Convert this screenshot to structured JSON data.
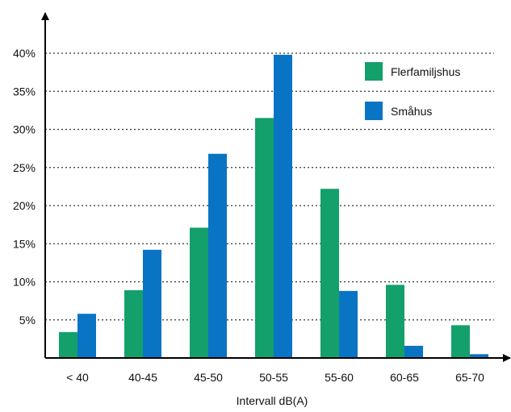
{
  "chart_data": {
    "type": "bar",
    "categories": [
      "< 40",
      "40-45",
      "45-50",
      "50-55",
      "55-60",
      "60-65",
      "65-70"
    ],
    "series": [
      {
        "name": "Flerfamiljshus",
        "color": "#13a06a",
        "values": [
          3.4,
          8.9,
          17.1,
          31.5,
          22.2,
          9.6,
          4.3
        ]
      },
      {
        "name": "Småhus",
        "color": "#0a74c4",
        "values": [
          5.8,
          14.2,
          26.8,
          39.8,
          8.8,
          1.6,
          0.5
        ]
      }
    ],
    "xlabel": "Intervall dB(A)",
    "ylabel": "",
    "ylim": [
      0,
      40
    ],
    "yticks": [
      {
        "value": 5,
        "label": "5%"
      },
      {
        "value": 10,
        "label": "10%"
      },
      {
        "value": 15,
        "label": "15%"
      },
      {
        "value": 20,
        "label": "20%"
      },
      {
        "value": 25,
        "label": "25%"
      },
      {
        "value": 30,
        "label": "30%"
      },
      {
        "value": 35,
        "label": "35%"
      },
      {
        "value": 40,
        "label": "40%"
      }
    ],
    "grid": true,
    "grid_style": "dotted",
    "legend_position": "top-right"
  }
}
